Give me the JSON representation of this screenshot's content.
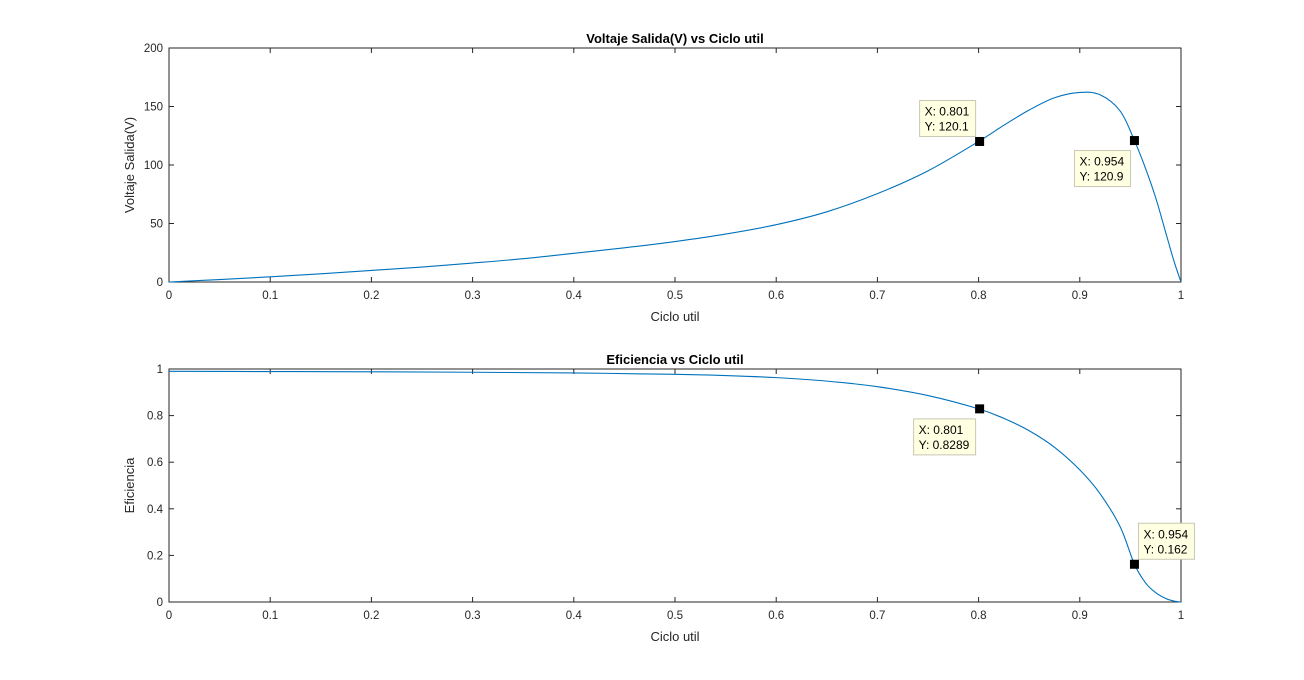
{
  "chart_data": [
    {
      "type": "line",
      "title": "Voltaje Salida(V) vs Ciclo util",
      "xlabel": "Ciclo util",
      "ylabel": "Voltaje Salida(V)",
      "xlim": [
        0,
        1
      ],
      "ylim": [
        0,
        200
      ],
      "xticks": [
        0,
        0.1,
        0.2,
        0.3,
        0.4,
        0.5,
        0.6,
        0.7,
        0.8,
        0.9,
        1
      ],
      "xtick_labels": [
        "0",
        "0.1",
        "0.2",
        "0.3",
        "0.4",
        "0.5",
        "0.6",
        "0.7",
        "0.8",
        "0.9",
        "1"
      ],
      "yticks": [
        0,
        50,
        100,
        150,
        200
      ],
      "ytick_labels": [
        "0",
        "50",
        "100",
        "150",
        "200"
      ],
      "grid": false,
      "series_color": "#0072bd",
      "x": [
        0,
        0.05,
        0.1,
        0.15,
        0.2,
        0.25,
        0.3,
        0.35,
        0.4,
        0.45,
        0.5,
        0.55,
        0.6,
        0.65,
        0.7,
        0.75,
        0.8,
        0.825,
        0.85,
        0.875,
        0.9,
        0.92,
        0.94,
        0.954,
        0.965,
        0.975,
        0.985,
        0.993,
        1
      ],
      "y": [
        0,
        2.1,
        4.4,
        7.0,
        9.9,
        12.8,
        16.2,
        19.9,
        24.5,
        29.2,
        34.6,
        41.0,
        49.0,
        60.0,
        75.5,
        95.0,
        120.1,
        134.0,
        147.0,
        157.5,
        162.0,
        160.0,
        146.0,
        120.9,
        97.0,
        72.0,
        42.0,
        18.0,
        0
      ],
      "datatips": [
        {
          "x_label": "X: 0.801",
          "y_label": "Y: 120.1",
          "x": 0.801,
          "y": 120.1,
          "position": "upper-left"
        },
        {
          "x_label": "X: 0.954",
          "y_label": "Y: 120.9",
          "x": 0.954,
          "y": 120.9,
          "position": "lower-left"
        }
      ]
    },
    {
      "type": "line",
      "title": "Eficiencia vs Ciclo util",
      "xlabel": "Ciclo util",
      "ylabel": "Eficiencia",
      "xlim": [
        0,
        1
      ],
      "ylim": [
        0,
        1
      ],
      "xticks": [
        0,
        0.1,
        0.2,
        0.3,
        0.4,
        0.5,
        0.6,
        0.7,
        0.8,
        0.9,
        1
      ],
      "xtick_labels": [
        "0",
        "0.1",
        "0.2",
        "0.3",
        "0.4",
        "0.5",
        "0.6",
        "0.7",
        "0.8",
        "0.9",
        "1"
      ],
      "yticks": [
        0,
        0.2,
        0.4,
        0.6,
        0.8,
        1
      ],
      "ytick_labels": [
        "0",
        "0.2",
        "0.4",
        "0.6",
        "0.8",
        "1"
      ],
      "grid": false,
      "series_color": "#0072bd",
      "x": [
        0,
        0.1,
        0.2,
        0.3,
        0.4,
        0.5,
        0.55,
        0.6,
        0.65,
        0.7,
        0.75,
        0.8,
        0.825,
        0.85,
        0.875,
        0.9,
        0.92,
        0.94,
        0.954,
        0.965,
        0.975,
        0.985,
        0.993,
        1
      ],
      "y": [
        0.99,
        0.989,
        0.988,
        0.986,
        0.983,
        0.977,
        0.972,
        0.963,
        0.948,
        0.924,
        0.886,
        0.829,
        0.788,
        0.735,
        0.664,
        0.567,
        0.465,
        0.322,
        0.162,
        0.082,
        0.04,
        0.015,
        0.004,
        0
      ],
      "datatips": [
        {
          "x_label": "X: 0.801",
          "y_label": "Y: 0.8289",
          "x": 0.801,
          "y": 0.8289,
          "position": "lower-left"
        },
        {
          "x_label": "X: 0.954",
          "y_label": "Y: 0.162",
          "x": 0.954,
          "y": 0.162,
          "position": "upper-right"
        }
      ]
    }
  ]
}
